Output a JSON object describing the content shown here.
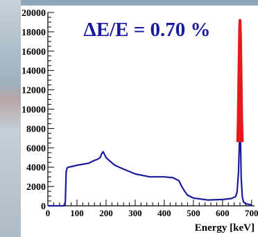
{
  "chart_data": {
    "type": "line",
    "annotation": "ΔE/E = 0.70 %",
    "xlabel": "Energy [keV]",
    "ylabel": "",
    "xlim": [
      0,
      710
    ],
    "ylim": [
      0,
      20000
    ],
    "x_ticks": [
      0,
      100,
      200,
      300,
      400,
      500,
      600,
      700
    ],
    "y_ticks": [
      0,
      2000,
      4000,
      6000,
      8000,
      10000,
      12000,
      14000,
      16000,
      18000,
      20000
    ],
    "y_tick_labels": [
      "0",
      "2000",
      "4000",
      "6000",
      "8000",
      "10000",
      "12000",
      "14000",
      "16000",
      "18000",
      "20000"
    ],
    "grid": false,
    "series": [
      {
        "color": "#1a1a9e",
        "x": [
          0,
          55,
          60,
          63,
          66,
          70,
          80,
          100,
          120,
          140,
          160,
          170,
          180,
          185,
          190,
          195,
          200,
          210,
          230,
          260,
          300,
          350,
          400,
          430,
          450,
          460,
          470,
          480,
          500,
          550,
          600,
          630,
          645,
          650,
          655,
          658,
          660,
          662,
          664,
          668,
          672,
          680,
          700
        ],
        "y": [
          0,
          0,
          400,
          3500,
          3900,
          4000,
          4050,
          4200,
          4300,
          4400,
          4700,
          4800,
          5000,
          5400,
          5600,
          5300,
          5000,
          4700,
          4200,
          3800,
          3300,
          3000,
          3000,
          2900,
          2600,
          2000,
          1500,
          1100,
          800,
          600,
          650,
          750,
          950,
          1400,
          3500,
          6600,
          12000,
          6600,
          3000,
          900,
          400,
          200,
          100
        ]
      },
      {
        "color": "#e41a1c",
        "x": [
          652,
          654,
          656,
          658,
          659,
          660,
          661,
          662,
          664,
          666,
          668
        ],
        "y": [
          6600,
          9000,
          13000,
          17000,
          18700,
          19200,
          18700,
          17000,
          13000,
          9000,
          6600
        ]
      }
    ]
  },
  "colors": {
    "axis": "#000000",
    "annotation": "#1a1a9e"
  }
}
